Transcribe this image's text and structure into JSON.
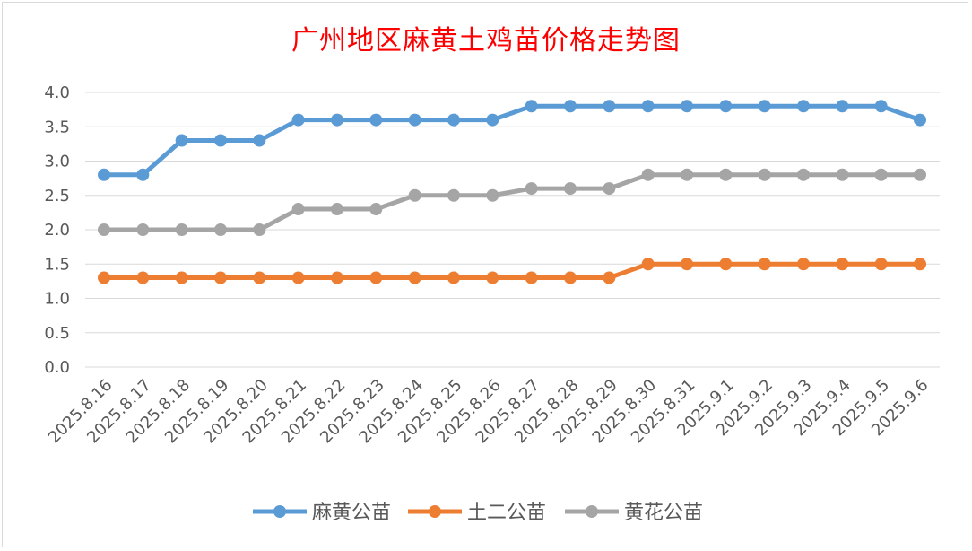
{
  "chart_data": {
    "type": "line",
    "title": "广州地区麻黄土鸡苗价格走势图",
    "categories": [
      "2025.8.16",
      "2025.8.17",
      "2025.8.18",
      "2025.8.19",
      "2025.8.20",
      "2025.8.21",
      "2025.8.22",
      "2025.8.23",
      "2025.8.24",
      "2025.8.25",
      "2025.8.26",
      "2025.8.27",
      "2025.8.28",
      "2025.8.29",
      "2025.8.30",
      "2025.8.31",
      "2025.9.1",
      "2025.9.2",
      "2025.9.3",
      "2025.9.4",
      "2025.9.5",
      "2025.9.6"
    ],
    "series": [
      {
        "name": "麻黄公苗",
        "color": "#5b9bd5",
        "values": [
          2.8,
          2.8,
          3.3,
          3.3,
          3.3,
          3.6,
          3.6,
          3.6,
          3.6,
          3.6,
          3.6,
          3.8,
          3.8,
          3.8,
          3.8,
          3.8,
          3.8,
          3.8,
          3.8,
          3.8,
          3.8,
          3.6
        ]
      },
      {
        "name": "土二公苗",
        "color": "#ed7d31",
        "values": [
          1.3,
          1.3,
          1.3,
          1.3,
          1.3,
          1.3,
          1.3,
          1.3,
          1.3,
          1.3,
          1.3,
          1.3,
          1.3,
          1.3,
          1.5,
          1.5,
          1.5,
          1.5,
          1.5,
          1.5,
          1.5,
          1.5
        ]
      },
      {
        "name": "黄花公苗",
        "color": "#a5a5a5",
        "values": [
          2.0,
          2.0,
          2.0,
          2.0,
          2.0,
          2.3,
          2.3,
          2.3,
          2.5,
          2.5,
          2.5,
          2.6,
          2.6,
          2.6,
          2.8,
          2.8,
          2.8,
          2.8,
          2.8,
          2.8,
          2.8,
          2.8
        ]
      }
    ],
    "ylim": [
      0,
      4.0
    ],
    "yticks": [
      "0.0",
      "0.5",
      "1.0",
      "1.5",
      "2.0",
      "2.5",
      "3.0",
      "3.5",
      "4.0"
    ],
    "grid": true,
    "legend_position": "bottom"
  }
}
